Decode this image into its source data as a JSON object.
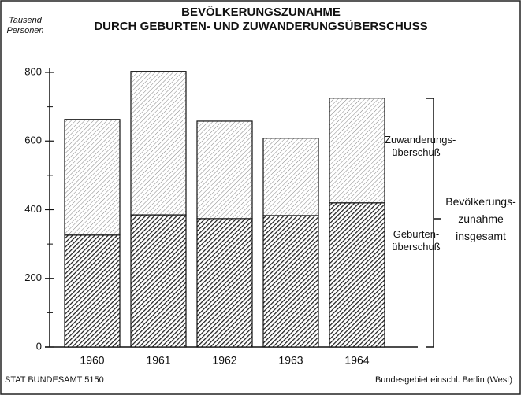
{
  "chart_data": {
    "type": "stacked_bar",
    "title": "BEVÖLKERUNGSZUNAHME",
    "subtitle": "DURCH GEBURTEN- UND ZUWANDERUNGSÜBERSCHUSS",
    "y_label": "Tausend Personen",
    "categories": [
      "1960",
      "1961",
      "1962",
      "1963",
      "1964"
    ],
    "series": [
      {
        "name": "Geburten-überschuß",
        "color": "#1a1a1a",
        "values": [
          326,
          385,
          374,
          383,
          420
        ]
      },
      {
        "name": "Zuwanderungs-überschuß",
        "color": "#777777",
        "values": [
          337,
          418,
          284,
          225,
          305
        ]
      }
    ],
    "total_label": "Bevölkerungs-zunahme insgesamt",
    "ylim": [
      0,
      800
    ],
    "yticks": [
      0,
      200,
      400,
      600,
      800
    ],
    "yminor": [
      100,
      300,
      500,
      700
    ],
    "source": "STAT BUNDESAMT 5150",
    "note": "Bundesgebiet einschl. Berlin (West)"
  }
}
